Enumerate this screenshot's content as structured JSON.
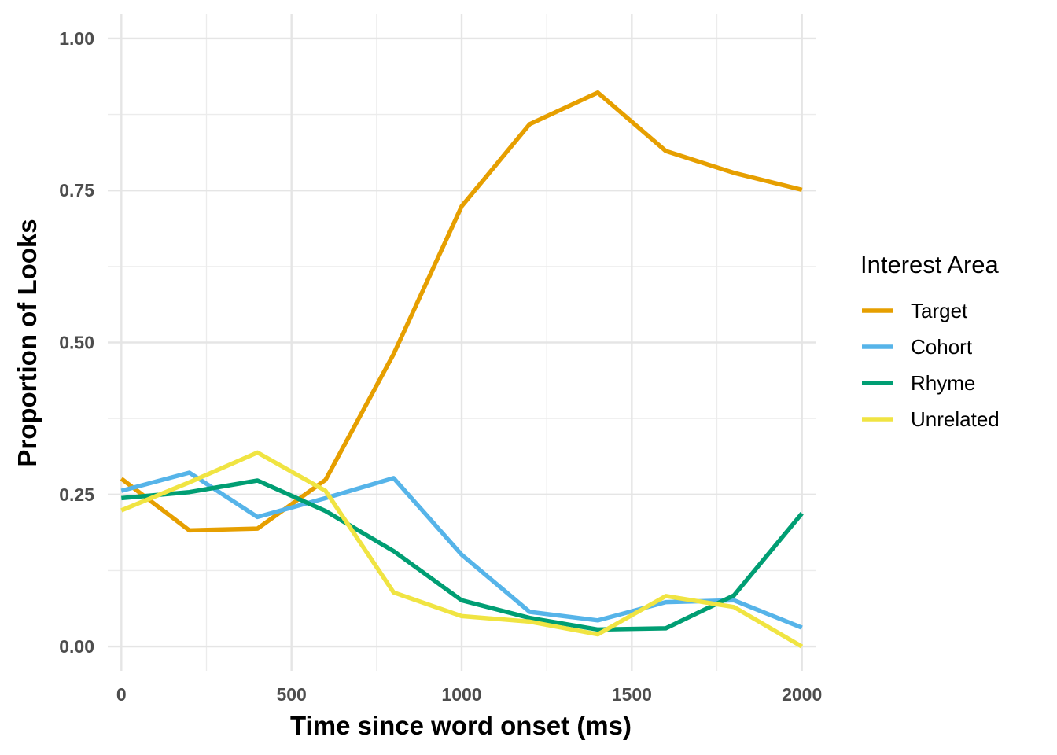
{
  "chart_data": {
    "type": "line",
    "xlabel": "Time since word onset (ms)",
    "ylabel": "Proportion of Looks",
    "xlim": [
      -40,
      2040
    ],
    "ylim": [
      -0.04,
      1.04
    ],
    "x_ticks": [
      0,
      500,
      1000,
      1500,
      2000
    ],
    "x_tick_labels": [
      "0",
      "500",
      "1000",
      "1500",
      "2000"
    ],
    "y_ticks": [
      0,
      0.25,
      0.5,
      0.75,
      1.0
    ],
    "y_tick_labels": [
      "0.00",
      "0.25",
      "0.50",
      "0.75",
      "1.00"
    ],
    "grid": true,
    "legend": {
      "title": "Interest Area",
      "position": "right"
    },
    "x": [
      0,
      200,
      400,
      600,
      800,
      1000,
      1200,
      1400,
      1600,
      1800,
      2000
    ],
    "series": [
      {
        "name": "Target",
        "color": "#E69F00",
        "values": [
          0.276,
          0.191,
          0.194,
          0.274,
          0.481,
          0.724,
          0.859,
          0.911,
          0.815,
          0.779,
          0.751
        ]
      },
      {
        "name": "Cohort",
        "color": "#56B4E9",
        "values": [
          0.256,
          0.286,
          0.213,
          0.244,
          0.277,
          0.151,
          0.057,
          0.043,
          0.073,
          0.076,
          0.031
        ]
      },
      {
        "name": "Rhyme",
        "color": "#009E73",
        "values": [
          0.244,
          0.254,
          0.273,
          0.223,
          0.157,
          0.076,
          0.047,
          0.028,
          0.03,
          0.084,
          0.219
        ]
      },
      {
        "name": "Unrelated",
        "color": "#F0E442",
        "values": [
          0.224,
          0.27,
          0.319,
          0.256,
          0.089,
          0.05,
          0.041,
          0.02,
          0.083,
          0.065,
          0.0
        ]
      }
    ]
  }
}
